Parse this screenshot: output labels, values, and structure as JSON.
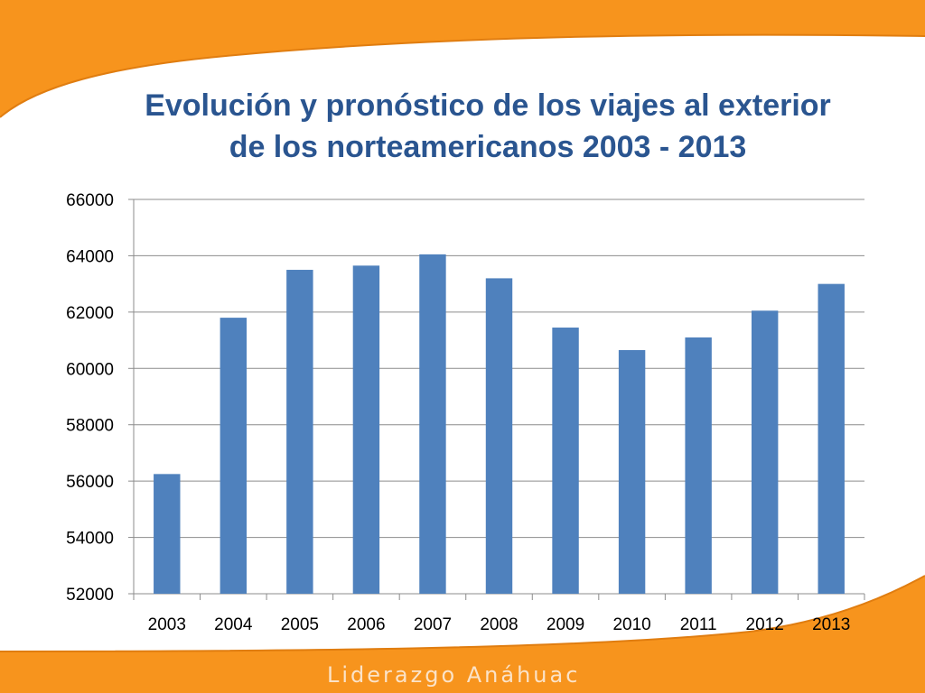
{
  "slide": {
    "title_line1": "Evolución y pronóstico de los viajes al exterior",
    "title_line2": "de los norteamericanos 2003 - 2013",
    "brand": "Liderazgo Anáhuac",
    "colors": {
      "orange": "#f7941d",
      "title": "#2a5590",
      "bar": "#4f81bd"
    }
  },
  "chart_data": {
    "type": "bar",
    "title": "Evolución y pronóstico de los viajes al exterior de los norteamericanos 2003 - 2013",
    "xlabel": "",
    "ylabel": "",
    "categories": [
      "2003",
      "2004",
      "2005",
      "2006",
      "2007",
      "2008",
      "2009",
      "2010",
      "2011",
      "2012",
      "2013"
    ],
    "values": [
      56250,
      61800,
      63500,
      63650,
      64050,
      63200,
      61450,
      60650,
      61100,
      62050,
      63000
    ],
    "ylim": [
      52000,
      66000
    ],
    "yticks": [
      "52000",
      "54000",
      "56000",
      "58000",
      "60000",
      "62000",
      "64000",
      "66000"
    ],
    "grid": true,
    "legend": "none"
  }
}
